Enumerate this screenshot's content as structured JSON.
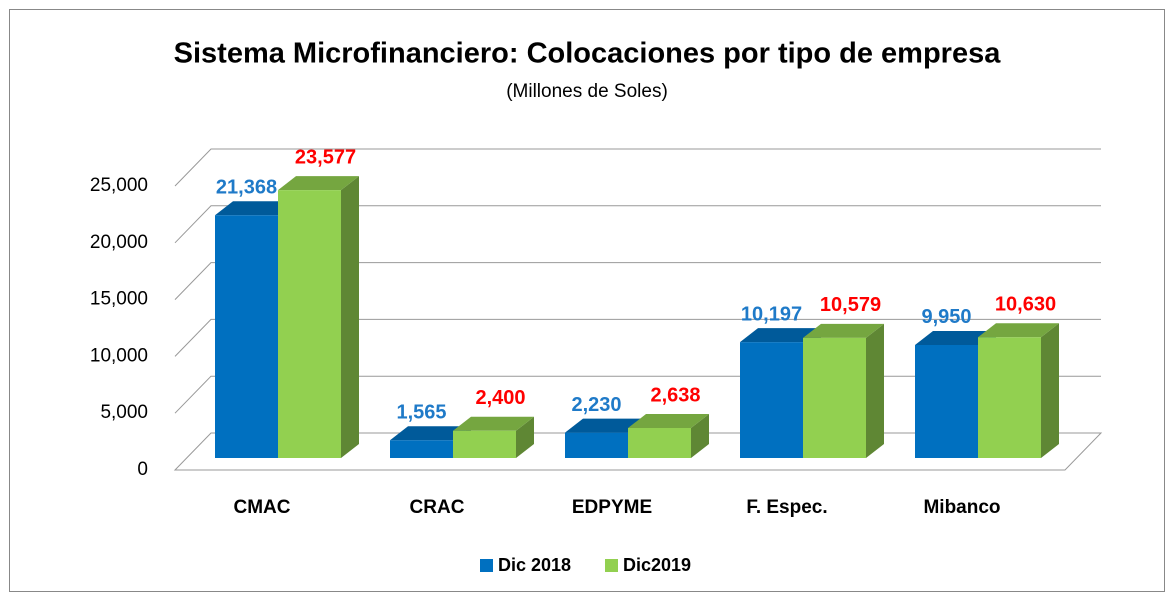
{
  "chart_data": {
    "type": "bar3d",
    "title": "Sistema Microfinanciero: Colocaciones por tipo de empresa",
    "subtitle": "(Millones  de Soles)",
    "categories": [
      "CMAC",
      "CRAC",
      "EDPYME",
      "F. Espec.",
      "Mibanco"
    ],
    "series": [
      {
        "name": "Dic 2018",
        "color": "#0070c0",
        "label_color": "#1f7ac8",
        "values": [
          21368,
          1565,
          2230,
          10197,
          9950
        ],
        "value_labels": [
          "21,368",
          "1,565",
          "2,230",
          "10,197",
          "9,950"
        ]
      },
      {
        "name": "Dic2019",
        "color": "#92d050",
        "label_color": "#ff0000",
        "values": [
          23577,
          2400,
          2638,
          10579,
          10630
        ],
        "value_labels": [
          "23,577",
          "2,400",
          "2,638",
          "10,579",
          "10,630"
        ]
      }
    ],
    "ylim": [
      0,
      25000
    ],
    "yticks": [
      0,
      {
        "value": 5000,
        "label": "5,000"
      },
      {
        "value": 10000,
        "label": "10,000"
      },
      {
        "value": 15000,
        "label": "15,000"
      },
      {
        "value": 20000,
        "label": "20,000"
      },
      {
        "value": 25000,
        "label": "25,000"
      }
    ],
    "grid": true,
    "legend": "bottom"
  }
}
